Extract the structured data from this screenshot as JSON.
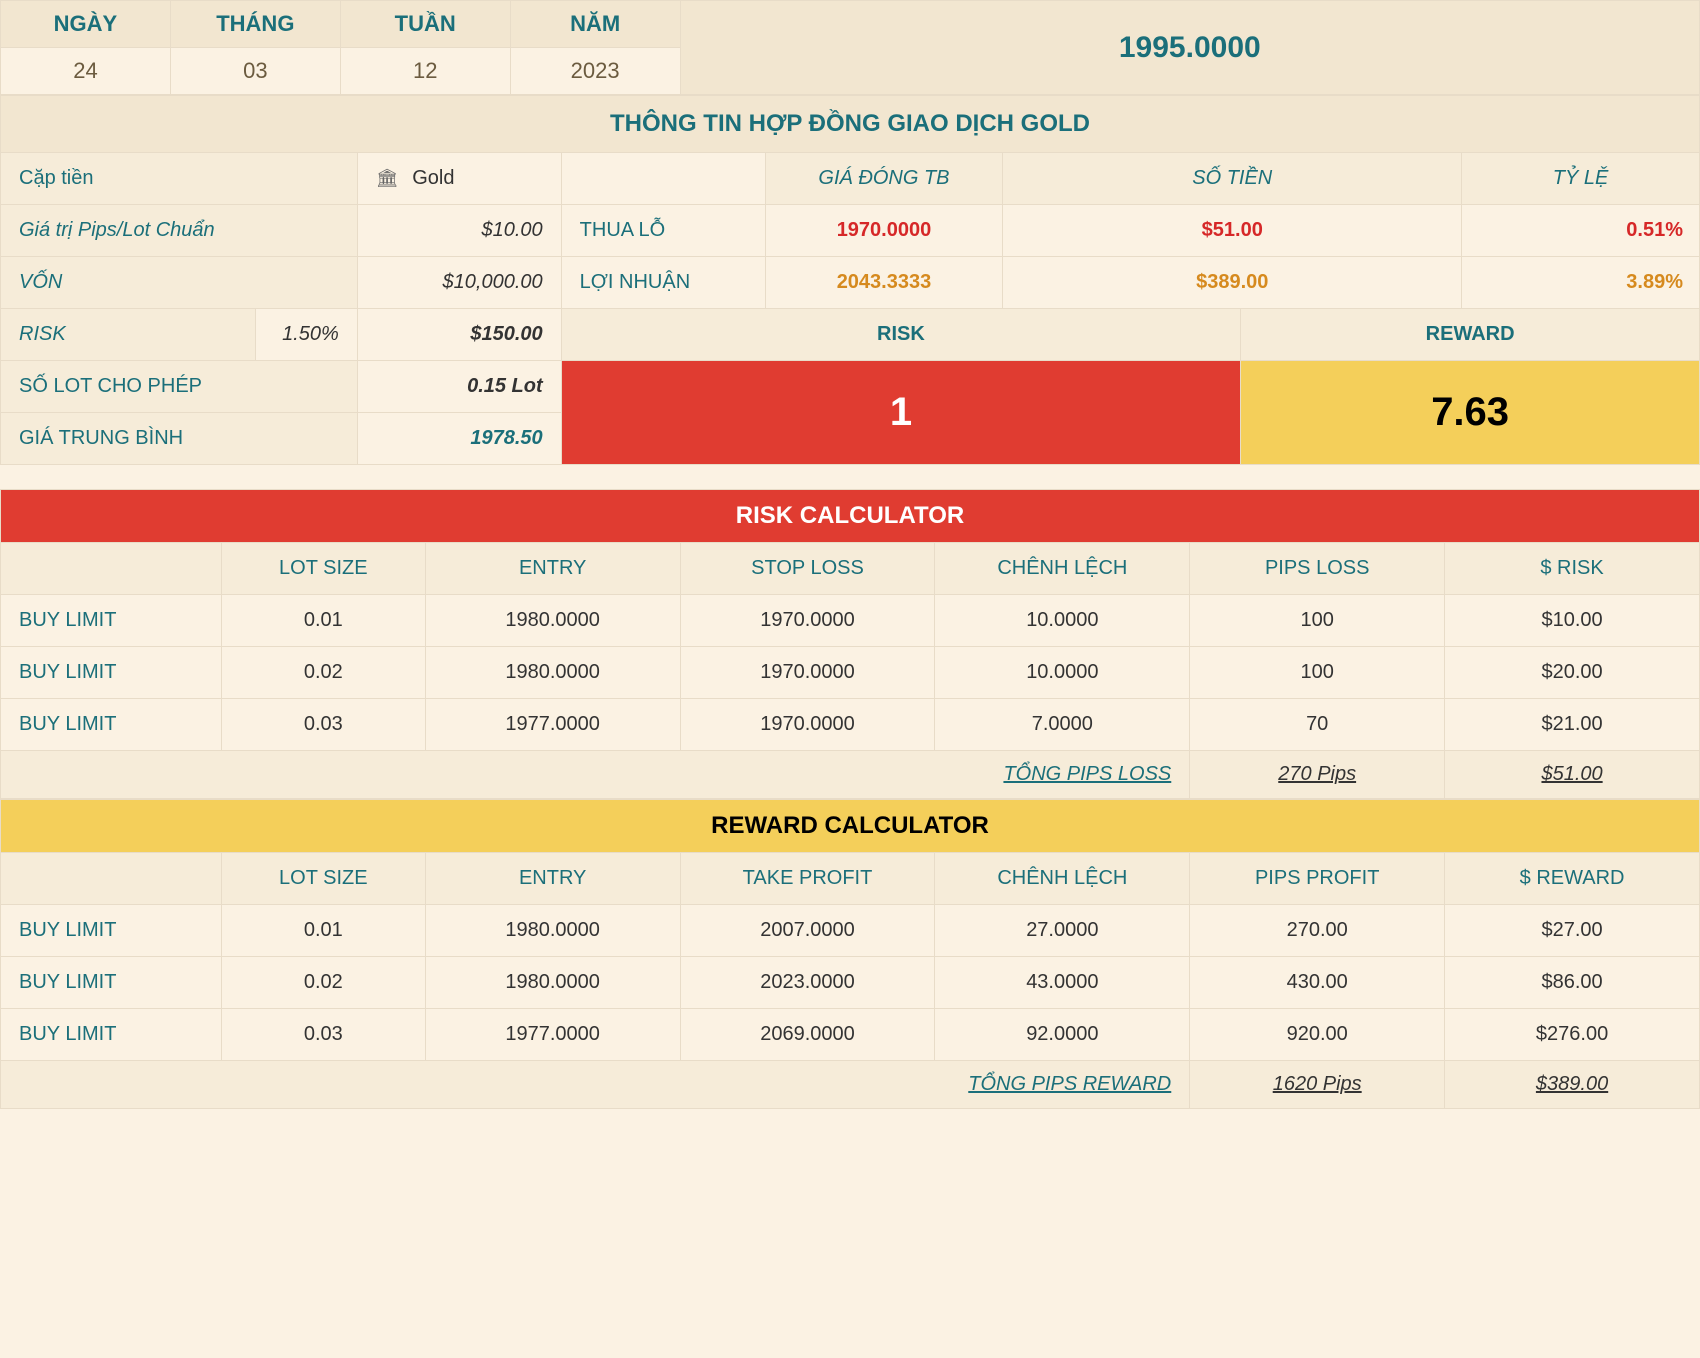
{
  "colors": {
    "bg": "#fbf2e3",
    "panel": "#f6ecd9",
    "head": "#f2e6d0",
    "teal": "#1b6f7a",
    "red": "#e03c31",
    "redText": "#d62828",
    "orange": "#d68a1e",
    "gold": "#f4cf5a",
    "border": "#e8dcc8"
  },
  "date": {
    "labels": {
      "day": "NGÀY",
      "month": "THÁNG",
      "week": "TUẦN",
      "year": "NĂM"
    },
    "values": {
      "day": "24",
      "month": "03",
      "week": "12",
      "year": "2023"
    },
    "price": "1995.0000"
  },
  "contract": {
    "title": "THÔNG TIN HỢP ĐỒNG GIAO DỊCH GOLD",
    "pair_label": "Cặp tiền",
    "pair_value": "Gold",
    "pip_label": "Giá trị Pips/Lot Chuẩn",
    "pip_value": "$10.00",
    "capital_label": "VỐN",
    "capital_value": "$10,000.00",
    "risk_label": "RISK",
    "risk_pct": "1.50%",
    "risk_amt": "$150.00",
    "lot_label": "SỐ LOT CHO PHÉP",
    "lot_value": "0.15 Lot",
    "avg_label": "GIÁ TRUNG BÌNH",
    "avg_value": "1978.50",
    "col_close": "GIÁ ĐÓNG TB",
    "col_amount": "SỐ TIỀN",
    "col_ratio": "TỶ LỆ",
    "loss_label": "THUA LỖ",
    "loss_close": "1970.0000",
    "loss_amount": "$51.00",
    "loss_ratio": "0.51%",
    "profit_label": "LỢI NHUẬN",
    "profit_close": "2043.3333",
    "profit_amount": "$389.00",
    "profit_ratio": "3.89%",
    "rr_risk_head": "RISK",
    "rr_reward_head": "REWARD",
    "rr_risk_val": "1",
    "rr_reward_val": "7.63"
  },
  "riskCalc": {
    "title": "RISK CALCULATOR",
    "headers": [
      "",
      "LOT SIZE",
      "ENTRY",
      "STOP LOSS",
      "CHÊNH LỆCH",
      "PIPS LOSS",
      "$ RISK"
    ],
    "rows": [
      [
        "BUY LIMIT",
        "0.01",
        "1980.0000",
        "1970.0000",
        "10.0000",
        "100",
        "$10.00"
      ],
      [
        "BUY LIMIT",
        "0.02",
        "1980.0000",
        "1970.0000",
        "10.0000",
        "100",
        "$20.00"
      ],
      [
        "BUY LIMIT",
        "0.03",
        "1977.0000",
        "1970.0000",
        "7.0000",
        "70",
        "$21.00"
      ]
    ],
    "footer_label": "TỔNG PIPS LOSS",
    "footer_pips": "270 Pips",
    "footer_amt": "$51.00"
  },
  "rewardCalc": {
    "title": "REWARD CALCULATOR",
    "headers": [
      "",
      "LOT SIZE",
      "ENTRY",
      "TAKE PROFIT",
      "CHÊNH LỆCH",
      "PIPS PROFIT",
      "$ REWARD"
    ],
    "rows": [
      [
        "BUY LIMIT",
        "0.01",
        "1980.0000",
        "2007.0000",
        "27.0000",
        "270.00",
        "$27.00"
      ],
      [
        "BUY LIMIT",
        "0.02",
        "1980.0000",
        "2023.0000",
        "43.0000",
        "430.00",
        "$86.00"
      ],
      [
        "BUY LIMIT",
        "0.03",
        "1977.0000",
        "2069.0000",
        "92.0000",
        "920.00",
        "$276.00"
      ]
    ],
    "footer_label": "TỔNG PIPS REWARD",
    "footer_pips": "1620 Pips",
    "footer_amt": "$389.00"
  }
}
